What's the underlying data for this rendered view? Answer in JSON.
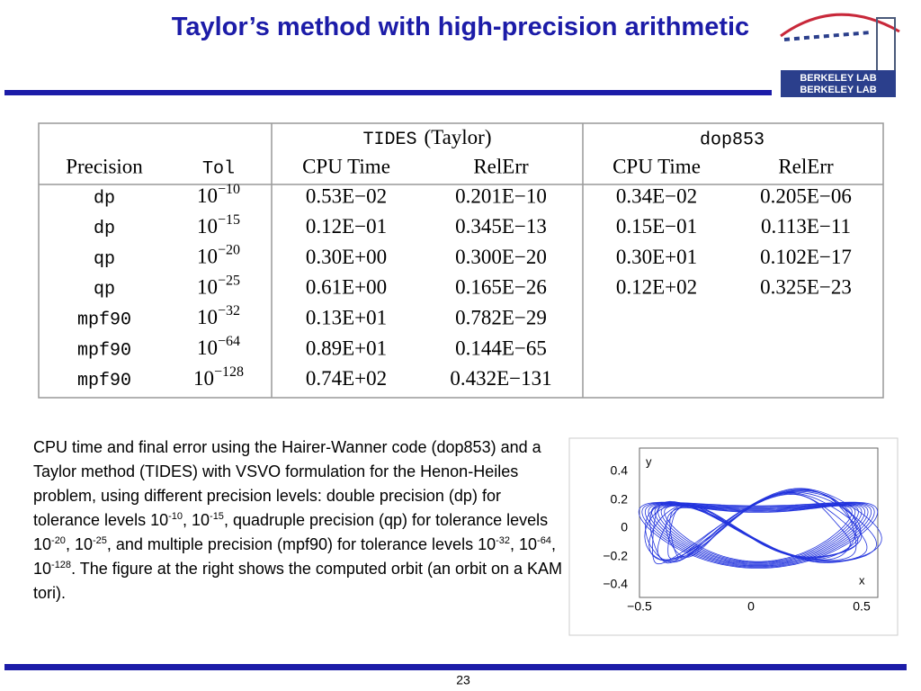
{
  "header": {
    "title": "Taylor’s method with high-precision arithmetic",
    "logo_lines": [
      "BERKELEY LAB",
      "BERKELEY LAB"
    ]
  },
  "table": {
    "group_headers": {
      "tides": {
        "code": "TIDES",
        "text": "(Taylor)"
      },
      "dop853": "dop853"
    },
    "columns": [
      "Precision",
      "Tol",
      "CPU Time",
      "RelErr",
      "CPU Time",
      "RelErr"
    ],
    "rows": [
      {
        "precision": "dp",
        "tol": {
          "base": "10",
          "exp": "−10"
        },
        "tides": [
          "0.53E−02",
          "0.201E−10"
        ],
        "dop853": [
          "0.34E−02",
          "0.205E−06"
        ]
      },
      {
        "precision": "dp",
        "tol": {
          "base": "10",
          "exp": "−15"
        },
        "tides": [
          "0.12E−01",
          "0.345E−13"
        ],
        "dop853": [
          "0.15E−01",
          "0.113E−11"
        ]
      },
      {
        "precision": "qp",
        "tol": {
          "base": "10",
          "exp": "−20"
        },
        "tides": [
          "0.30E+00",
          "0.300E−20"
        ],
        "dop853": [
          "0.30E+01",
          "0.102E−17"
        ]
      },
      {
        "precision": "qp",
        "tol": {
          "base": "10",
          "exp": "−25"
        },
        "tides": [
          "0.61E+00",
          "0.165E−26"
        ],
        "dop853": [
          "0.12E+02",
          "0.325E−23"
        ]
      },
      {
        "precision": "mpf90",
        "tol": {
          "base": "10",
          "exp": "−32"
        },
        "tides": [
          "0.13E+01",
          "0.782E−29"
        ]
      },
      {
        "precision": "mpf90",
        "tol": {
          "base": "10",
          "exp": "−64"
        },
        "tides": [
          "0.89E+01",
          "0.144E−65"
        ]
      },
      {
        "precision": "mpf90",
        "tol": {
          "base": "10",
          "exp": "−128"
        },
        "tides": [
          "0.74E+02",
          "0.432E−131"
        ]
      }
    ]
  },
  "caption": [
    "CPU time and final error using the Hairer-Wanner code (dop853) and a Taylor method (TIDES) with VSVO formulation for the Henon-Heiles problem, using different precision levels: double precision (dp) for tolerance levels 10",
    {
      "sup": "-10"
    },
    ", 10",
    {
      "sup": "-15"
    },
    ", quadruple precision (qp) for tolerance levels 10",
    {
      "sup": "-20"
    },
    ", 10",
    {
      "sup": "-25"
    },
    ", and multiple precision (mpf90) for tolerance levels 10",
    {
      "sup": "-32"
    },
    ", 10",
    {
      "sup": "-64"
    },
    ", 10",
    {
      "sup": "-128"
    },
    ".  The figure at the right shows the computed orbit (an orbit on a KAM tori)."
  ],
  "figure": {
    "x_label": "x",
    "y_label": "y",
    "x_ticks": [
      "−0.5",
      "0",
      "0.5"
    ],
    "y_ticks": [
      "0.4",
      "0.2",
      "0",
      "−0.2",
      "−0.4"
    ]
  },
  "footer": {
    "page": "23"
  }
}
